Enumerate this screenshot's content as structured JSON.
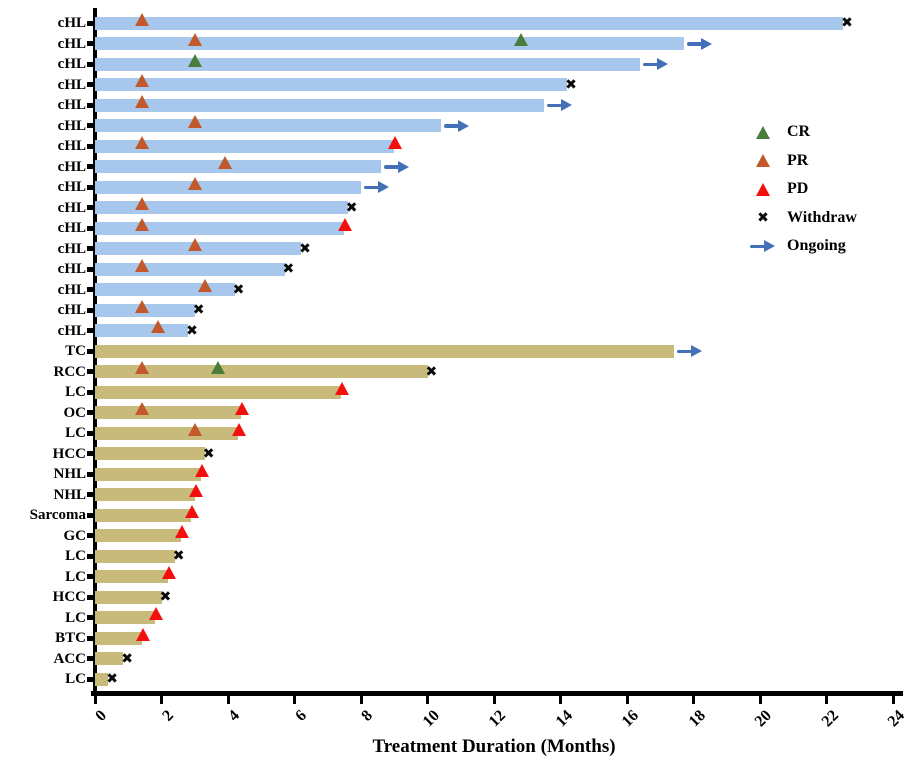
{
  "chart_data": {
    "type": "bar",
    "variant": "swimmer-plot",
    "orientation": "horizontal",
    "title": "",
    "xlabel": "Treatment Duration (Months)",
    "ylabel": "",
    "xlim": [
      0,
      24
    ],
    "xticks": [
      0,
      2,
      4,
      6,
      8,
      10,
      12,
      14,
      16,
      18,
      20,
      22,
      24
    ],
    "grid": false,
    "legend_position": "upper-right",
    "legend": [
      {
        "label": "CR",
        "symbol": "triangle",
        "color": "#4C7C3B"
      },
      {
        "label": "PR",
        "symbol": "triangle",
        "color": "#C2582B"
      },
      {
        "label": "PD",
        "symbol": "triangle",
        "color": "#F40F0F"
      },
      {
        "label": "Withdraw",
        "symbol": "cross",
        "color": "#000000"
      },
      {
        "label": "Ongoing",
        "symbol": "arrow",
        "color": "#4470B8"
      }
    ],
    "bar_colors": {
      "cHL": "#A7C7EC",
      "other": "#C7BA7B"
    },
    "rows": [
      {
        "label": "cHL",
        "group": "cHL",
        "duration": 22.5,
        "end": "Withdraw",
        "markers": [
          {
            "type": "PR",
            "x": 1.4
          }
        ]
      },
      {
        "label": "cHL",
        "group": "cHL",
        "duration": 17.7,
        "end": "Ongoing",
        "markers": [
          {
            "type": "PR",
            "x": 3.0
          },
          {
            "type": "CR",
            "x": 12.8
          }
        ]
      },
      {
        "label": "cHL",
        "group": "cHL",
        "duration": 16.4,
        "end": "Ongoing",
        "markers": [
          {
            "type": "CR",
            "x": 3.0
          }
        ]
      },
      {
        "label": "cHL",
        "group": "cHL",
        "duration": 14.2,
        "end": "Withdraw",
        "markers": [
          {
            "type": "PR",
            "x": 1.4
          }
        ]
      },
      {
        "label": "cHL",
        "group": "cHL",
        "duration": 13.5,
        "end": "Ongoing",
        "markers": [
          {
            "type": "PR",
            "x": 1.4
          }
        ]
      },
      {
        "label": "cHL",
        "group": "cHL",
        "duration": 10.4,
        "end": "Ongoing",
        "markers": [
          {
            "type": "PR",
            "x": 3.0
          }
        ]
      },
      {
        "label": "cHL",
        "group": "cHL",
        "duration": 9.0,
        "end": "PD",
        "markers": [
          {
            "type": "PR",
            "x": 1.4
          }
        ]
      },
      {
        "label": "cHL",
        "group": "cHL",
        "duration": 8.6,
        "end": "Ongoing",
        "markers": [
          {
            "type": "PR",
            "x": 3.9
          }
        ]
      },
      {
        "label": "cHL",
        "group": "cHL",
        "duration": 8.0,
        "end": "Ongoing",
        "markers": [
          {
            "type": "PR",
            "x": 3.0
          }
        ]
      },
      {
        "label": "cHL",
        "group": "cHL",
        "duration": 7.6,
        "end": "Withdraw",
        "markers": [
          {
            "type": "PR",
            "x": 1.4
          }
        ]
      },
      {
        "label": "cHL",
        "group": "cHL",
        "duration": 7.5,
        "end": "PD",
        "markers": [
          {
            "type": "PR",
            "x": 1.4
          }
        ]
      },
      {
        "label": "cHL",
        "group": "cHL",
        "duration": 6.2,
        "end": "Withdraw",
        "markers": [
          {
            "type": "PR",
            "x": 3.0
          }
        ]
      },
      {
        "label": "cHL",
        "group": "cHL",
        "duration": 5.7,
        "end": "Withdraw",
        "markers": [
          {
            "type": "PR",
            "x": 1.4
          }
        ]
      },
      {
        "label": "cHL",
        "group": "cHL",
        "duration": 4.2,
        "end": "Withdraw",
        "markers": [
          {
            "type": "PR",
            "x": 3.3
          }
        ]
      },
      {
        "label": "cHL",
        "group": "cHL",
        "duration": 3.0,
        "end": "Withdraw",
        "markers": [
          {
            "type": "PR",
            "x": 1.4
          }
        ]
      },
      {
        "label": "cHL",
        "group": "cHL",
        "duration": 2.8,
        "end": "Withdraw",
        "markers": [
          {
            "type": "PR",
            "x": 1.9
          }
        ]
      },
      {
        "label": "TC",
        "group": "other",
        "duration": 17.4,
        "end": "Ongoing",
        "markers": []
      },
      {
        "label": "RCC",
        "group": "other",
        "duration": 10.0,
        "end": "Withdraw",
        "markers": [
          {
            "type": "PR",
            "x": 1.4
          },
          {
            "type": "CR",
            "x": 3.7
          }
        ]
      },
      {
        "label": "LC",
        "group": "other",
        "duration": 7.4,
        "end": "PD",
        "markers": []
      },
      {
        "label": "OC",
        "group": "other",
        "duration": 4.4,
        "end": "PD",
        "markers": [
          {
            "type": "PR",
            "x": 1.4
          }
        ]
      },
      {
        "label": "LC",
        "group": "other",
        "duration": 4.3,
        "end": "PD",
        "markers": [
          {
            "type": "PR",
            "x": 3.0
          }
        ]
      },
      {
        "label": "HCC",
        "group": "other",
        "duration": 3.3,
        "end": "Withdraw",
        "markers": []
      },
      {
        "label": "NHL",
        "group": "other",
        "duration": 3.2,
        "end": "PD",
        "markers": []
      },
      {
        "label": "NHL",
        "group": "other",
        "duration": 3.0,
        "end": "PD",
        "markers": []
      },
      {
        "label": "Sarcoma",
        "group": "other",
        "duration": 2.9,
        "end": "PD",
        "markers": []
      },
      {
        "label": "GC",
        "group": "other",
        "duration": 2.6,
        "end": "PD",
        "markers": []
      },
      {
        "label": "LC",
        "group": "other",
        "duration": 2.4,
        "end": "Withdraw",
        "markers": []
      },
      {
        "label": "LC",
        "group": "other",
        "duration": 2.2,
        "end": "PD",
        "markers": []
      },
      {
        "label": "HCC",
        "group": "other",
        "duration": 2.0,
        "end": "Withdraw",
        "markers": []
      },
      {
        "label": "LC",
        "group": "other",
        "duration": 1.8,
        "end": "PD",
        "markers": []
      },
      {
        "label": "BTC",
        "group": "other",
        "duration": 1.4,
        "end": "PD",
        "markers": []
      },
      {
        "label": "ACC",
        "group": "other",
        "duration": 0.85,
        "end": "Withdraw",
        "markers": []
      },
      {
        "label": "LC",
        "group": "other",
        "duration": 0.4,
        "end": "Withdraw",
        "markers": []
      }
    ]
  }
}
